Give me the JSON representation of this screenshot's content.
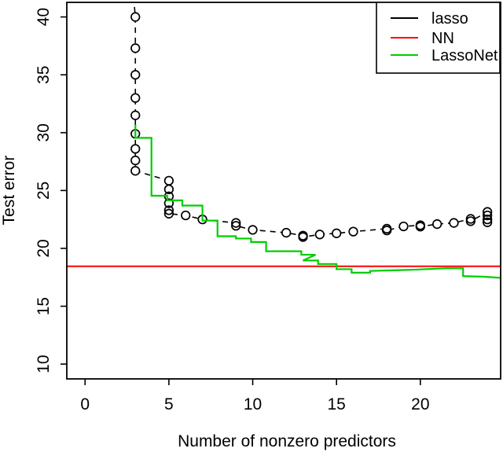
{
  "figure": {
    "xlabel": "Number of nonzero predictors",
    "ylabel": "Test error"
  },
  "legend": {
    "position": "top-right",
    "items": [
      {
        "label": "lasso",
        "color": "#000000"
      },
      {
        "label": "NN",
        "color": "#ff0000"
      },
      {
        "label": "LassoNet",
        "color": "#00cd00"
      }
    ]
  },
  "chart_data": {
    "type": "line",
    "title": "",
    "xlabel": "Number of nonzero predictors",
    "ylabel": "Test error",
    "xlim": [
      -1.09,
      24.79
    ],
    "ylim": [
      8.72,
      41.26
    ],
    "x_ticks": [
      0,
      5,
      10,
      15,
      20
    ],
    "y_ticks": [
      10,
      15,
      20,
      25,
      30,
      35,
      40
    ],
    "grid": false,
    "legend_position": "top-right",
    "series": [
      {
        "name": "lasso",
        "type": "scatter-line",
        "color": "#000000",
        "marker": "open-circle",
        "linestyle": "dashed",
        "entry_point": [
          2.78,
          43.5
        ],
        "points": [
          [
            3,
            40.0
          ],
          [
            3,
            37.3
          ],
          [
            3,
            35.0
          ],
          [
            3,
            33.0
          ],
          [
            3,
            31.5
          ],
          [
            3,
            29.9
          ],
          [
            3,
            28.6
          ],
          [
            3,
            27.6
          ],
          [
            3,
            26.7
          ],
          [
            5,
            25.85
          ],
          [
            5,
            25.1
          ],
          [
            5,
            24.5
          ],
          [
            5,
            23.9
          ],
          [
            5,
            23.3
          ],
          [
            5,
            23.0
          ],
          [
            6,
            22.85
          ],
          [
            7,
            22.5
          ],
          [
            9,
            22.2
          ],
          [
            9,
            21.95
          ],
          [
            10,
            21.6
          ],
          [
            12,
            21.35
          ],
          [
            13,
            21.1
          ],
          [
            13,
            20.98
          ],
          [
            14,
            21.2
          ],
          [
            15,
            21.3
          ],
          [
            16,
            21.45
          ],
          [
            18,
            21.7
          ],
          [
            18,
            21.55
          ],
          [
            19,
            21.9
          ],
          [
            20,
            22.0
          ],
          [
            20,
            21.88
          ],
          [
            21,
            22.1
          ],
          [
            22,
            22.2
          ],
          [
            23,
            22.55
          ],
          [
            23,
            22.35
          ],
          [
            24,
            23.15
          ],
          [
            24,
            22.85
          ],
          [
            24,
            22.5
          ],
          [
            24,
            22.25
          ]
        ]
      },
      {
        "name": "NN",
        "type": "hline",
        "color": "#ff0000",
        "value": 18.45
      },
      {
        "name": "LassoNet",
        "type": "step-line",
        "color": "#00cd00",
        "points": [
          [
            3,
            30.7
          ],
          [
            3,
            29.55
          ],
          [
            3.96,
            29.55
          ],
          [
            3.96,
            24.55
          ],
          [
            4.9,
            24.55
          ],
          [
            4.9,
            24.15
          ],
          [
            5.8,
            24.15
          ],
          [
            5.8,
            23.7
          ],
          [
            7,
            23.7
          ],
          [
            7,
            22.4
          ],
          [
            7.9,
            22.4
          ],
          [
            7.9,
            21.05
          ],
          [
            9,
            21.05
          ],
          [
            9,
            20.85
          ],
          [
            9.9,
            20.85
          ],
          [
            9.9,
            20.55
          ],
          [
            10.8,
            20.55
          ],
          [
            10.8,
            19.75
          ],
          [
            12.9,
            19.75
          ],
          [
            12.9,
            19.45
          ],
          [
            13.75,
            19.45
          ],
          [
            13.0,
            18.95
          ],
          [
            13.9,
            18.95
          ],
          [
            13.9,
            18.65
          ],
          [
            15.0,
            18.65
          ],
          [
            15.0,
            18.2
          ],
          [
            15.9,
            18.2
          ],
          [
            15.9,
            17.9
          ],
          [
            17.0,
            17.9
          ],
          [
            17.0,
            18.05
          ],
          [
            19.5,
            18.15
          ],
          [
            21.5,
            18.28
          ],
          [
            22.55,
            18.28
          ],
          [
            22.55,
            17.6
          ],
          [
            23.8,
            17.55
          ],
          [
            24.8,
            17.45
          ]
        ]
      }
    ]
  }
}
